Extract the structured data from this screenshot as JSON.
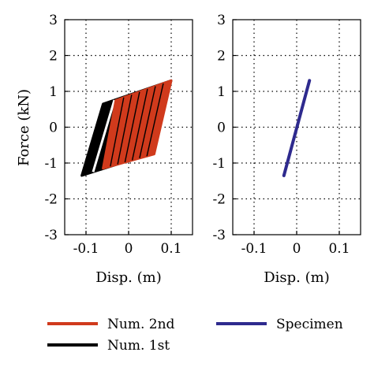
{
  "chart_data": [
    {
      "type": "line",
      "panel": "left",
      "title": "",
      "xlabel": "Disp. (m)",
      "ylabel": "Force (kN)",
      "xlim": [
        -0.15,
        0.15
      ],
      "ylim": [
        -3,
        3
      ],
      "xticks": [
        -0.1,
        0,
        0.1
      ],
      "xtick_labels": [
        "-0.1",
        "0",
        "0.1"
      ],
      "yticks": [
        -3,
        -2,
        -1,
        0,
        1,
        2,
        3
      ],
      "ytick_labels": [
        "-3",
        "-2",
        "-1",
        "0",
        "1",
        "2",
        "3"
      ],
      "grid": true,
      "series": [
        {
          "name": "Num. 1st",
          "color": "#000000",
          "x": [
            -0.11,
            -0.06,
            0.1,
            0.05,
            -0.11
          ],
          "y": [
            -1.35,
            0.65,
            1.3,
            -0.75,
            -1.35
          ]
        },
        {
          "name": "Num. 2nd",
          "color": "#d03a1c",
          "x": [
            -0.06,
            -0.03,
            0.1,
            0.06,
            -0.06
          ],
          "y": [
            -1.15,
            0.75,
            1.3,
            -0.75,
            -1.15
          ]
        }
      ]
    },
    {
      "type": "line",
      "panel": "right",
      "title": "",
      "xlabel": "Disp. (m)",
      "ylabel": "",
      "xlim": [
        -0.15,
        0.15
      ],
      "ylim": [
        -3,
        3
      ],
      "xticks": [
        -0.1,
        0,
        0.1
      ],
      "xtick_labels": [
        "-0.1",
        "0",
        "0.1"
      ],
      "yticks": [
        -3,
        -2,
        -1,
        0,
        1,
        2,
        3
      ],
      "ytick_labels": [
        "-3",
        "-2",
        "-1",
        "0",
        "1",
        "2",
        "3"
      ],
      "grid": true,
      "series": [
        {
          "name": "Specimen",
          "color": "#2e2a8e",
          "x": [
            -0.03,
            0.03
          ],
          "y": [
            -1.35,
            1.3
          ]
        }
      ]
    }
  ],
  "legend": {
    "placement": "bottom",
    "items": [
      {
        "label": "Num. 2nd",
        "color": "#d03a1c"
      },
      {
        "label": "Specimen",
        "color": "#2e2a8e"
      },
      {
        "label": "Num. 1st",
        "color": "#000000"
      }
    ]
  }
}
